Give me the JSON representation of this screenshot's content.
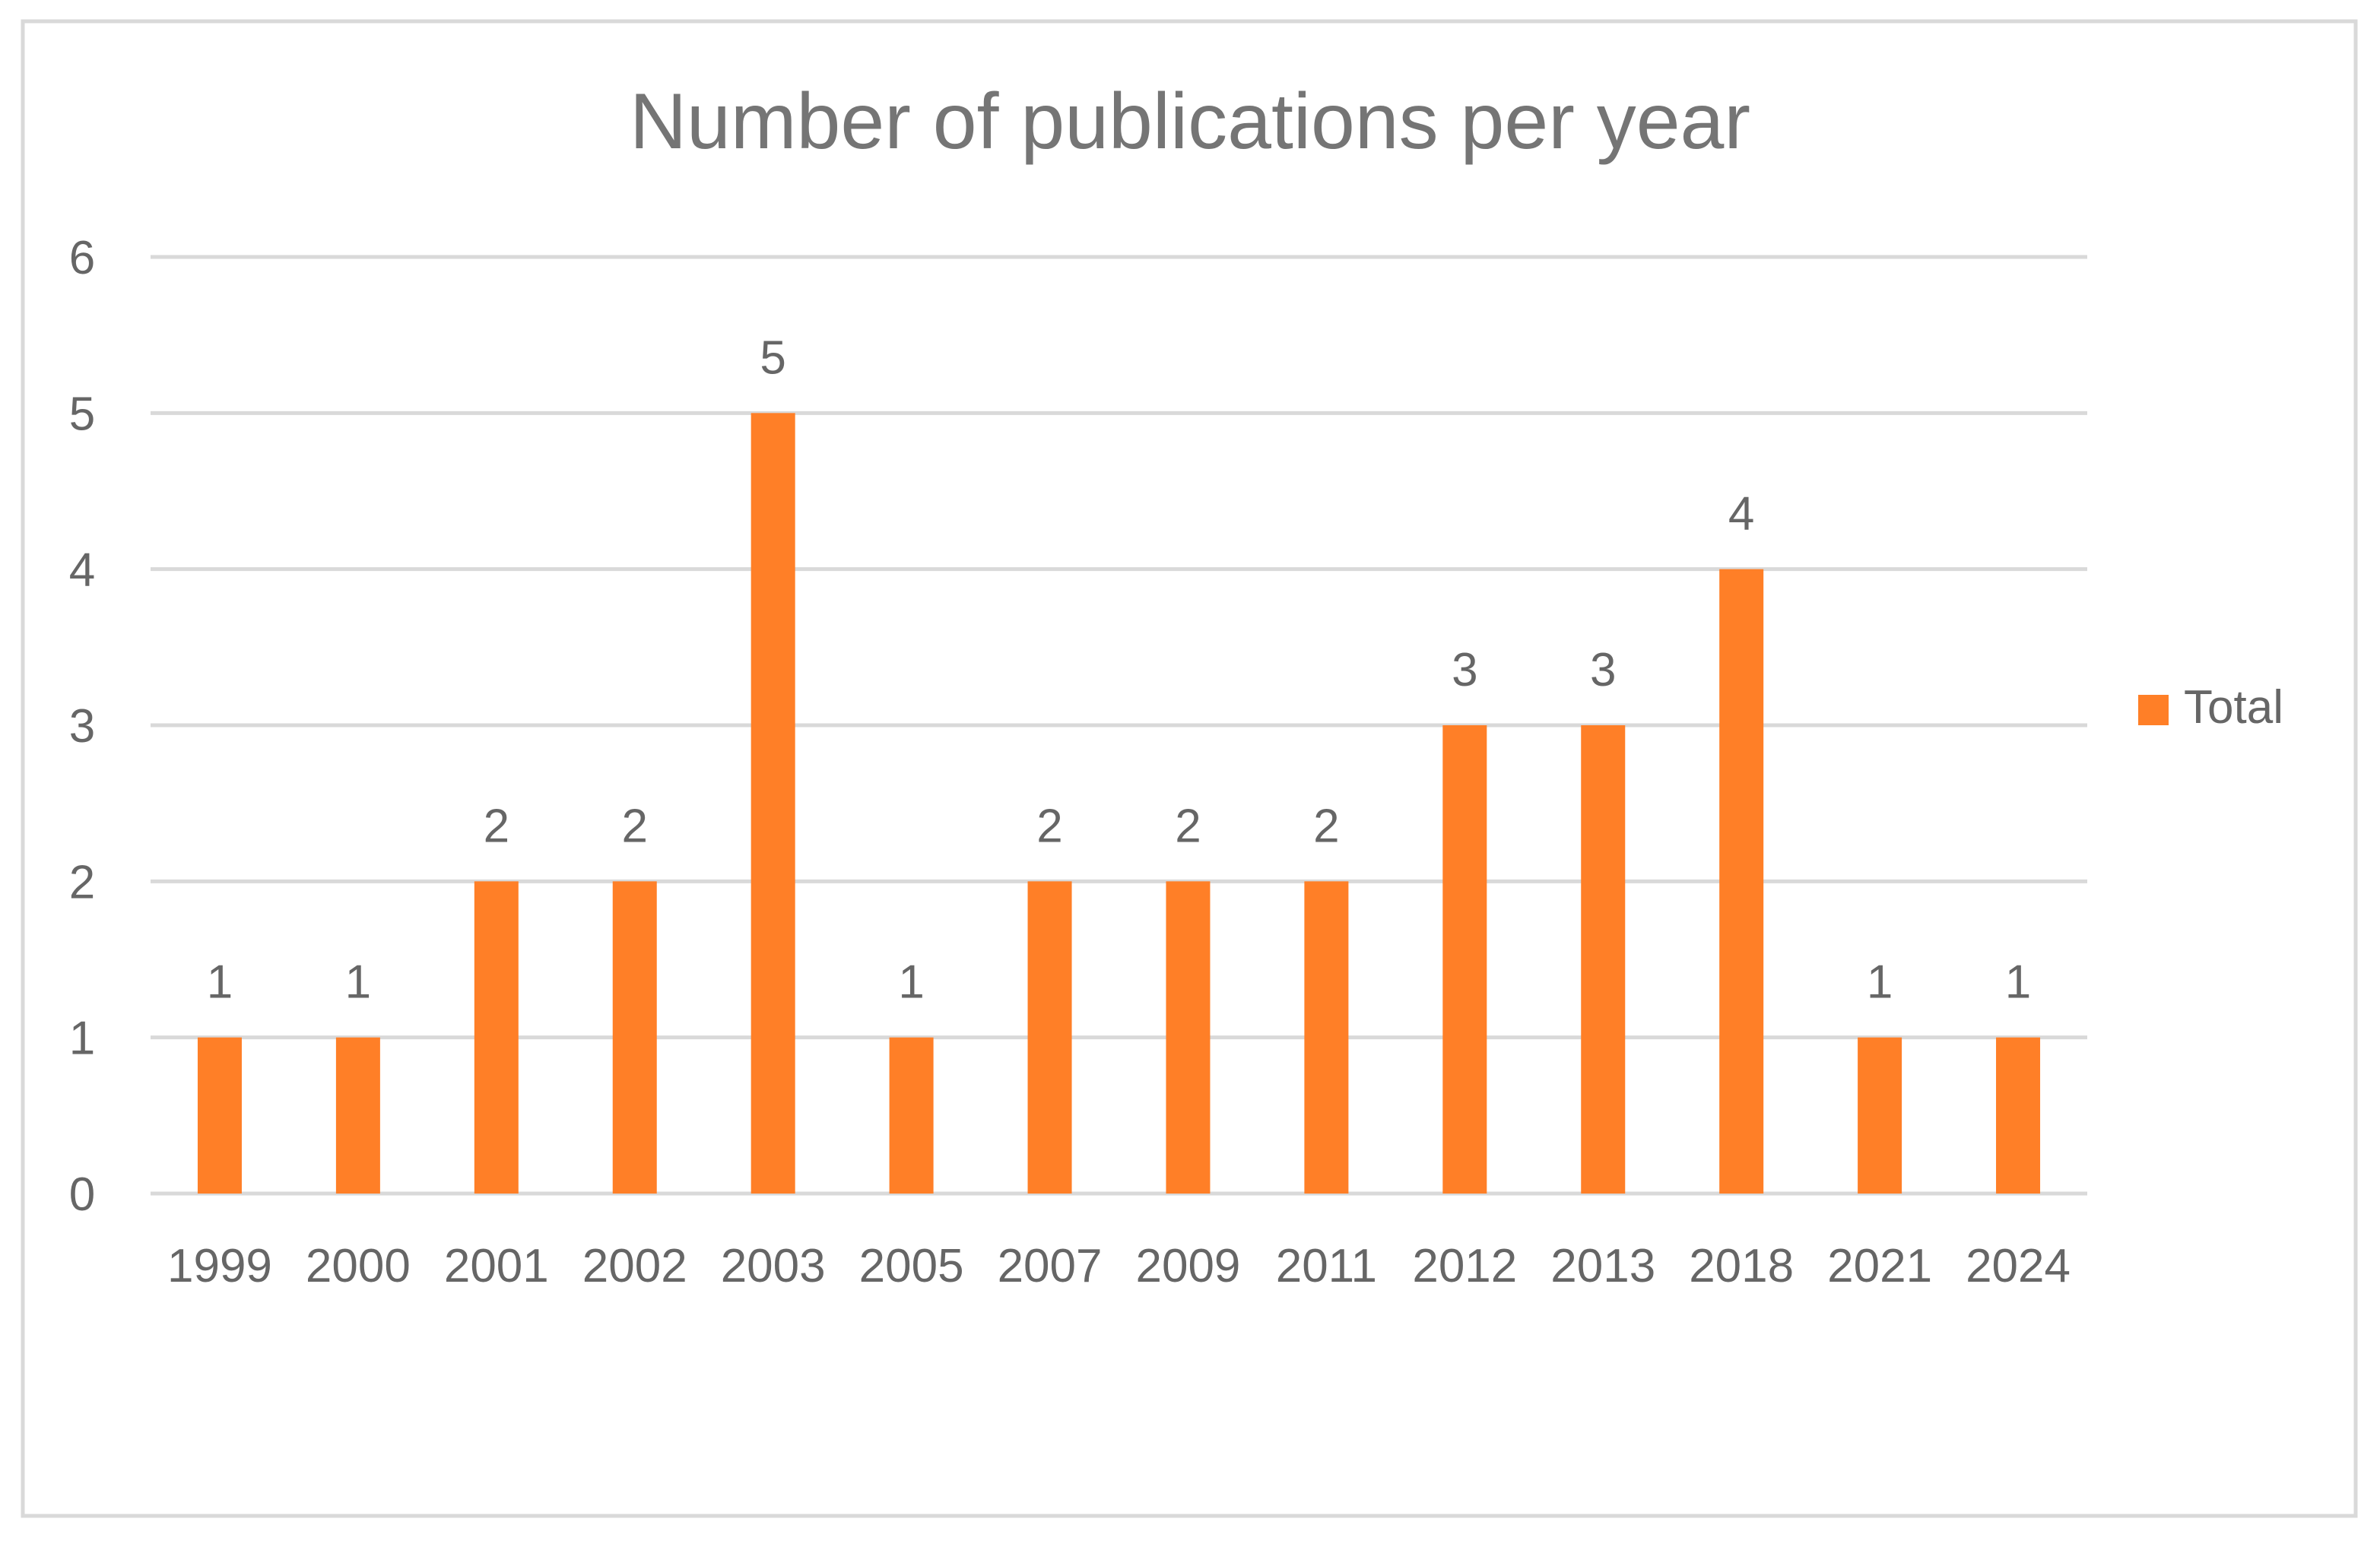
{
  "chart_data": {
    "type": "bar",
    "title": "Number of publications per year",
    "xlabel": "",
    "ylabel": "",
    "categories": [
      "1999",
      "2000",
      "2001",
      "2002",
      "2003",
      "2005",
      "2007",
      "2009",
      "2011",
      "2012",
      "2013",
      "2018",
      "2021",
      "2024"
    ],
    "series": [
      {
        "name": "Total",
        "values": [
          1,
          1,
          2,
          2,
          5,
          1,
          2,
          2,
          2,
          3,
          3,
          4,
          1,
          1
        ],
        "color": "#FF7F27"
      }
    ],
    "ylim": [
      0,
      6
    ],
    "yticks": [
      "0",
      "1",
      "2",
      "3",
      "4",
      "5",
      "6"
    ],
    "data_labels": true,
    "grid": true,
    "legend": "right"
  },
  "colors": {
    "bar": "#FF7F27",
    "text": "#666666",
    "title": "#757575",
    "grid": "#D9D9D9",
    "border": "#D9D9D9"
  }
}
